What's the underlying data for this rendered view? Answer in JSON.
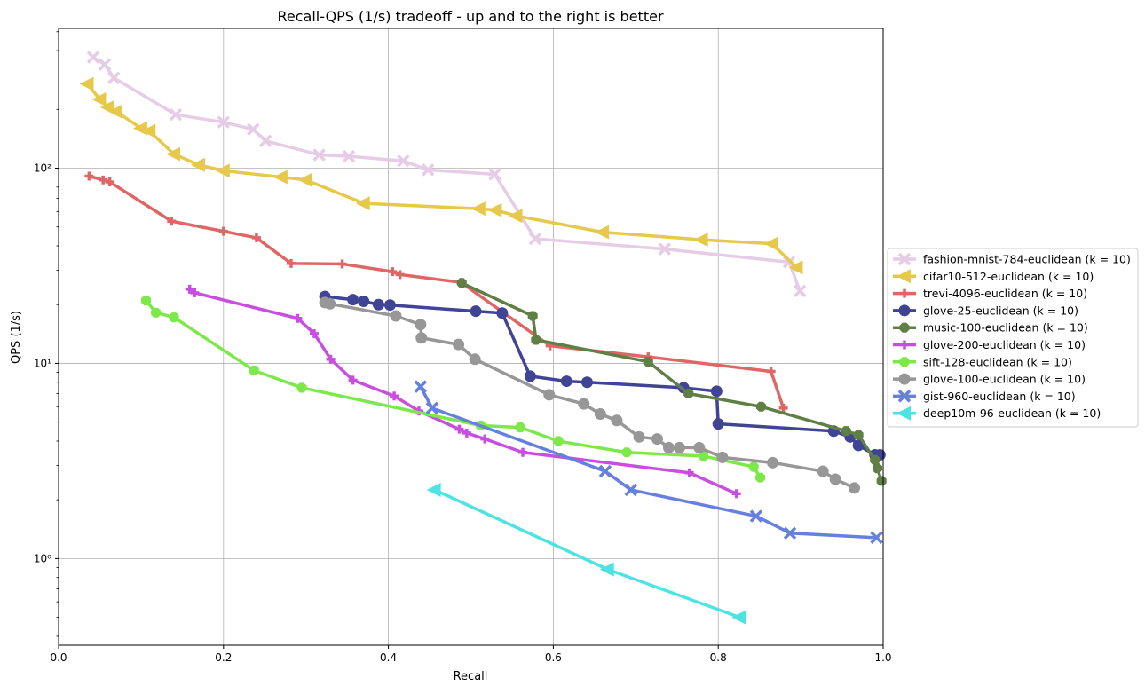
{
  "chart_data": {
    "type": "line",
    "title": "Recall-QPS (1/s) tradeoff - up and to the right is better",
    "xlabel": "Recall",
    "ylabel": "QPS (1/s)",
    "xlim": [
      0.0,
      1.0
    ],
    "ylim": [
      0.36,
      520
    ],
    "x_scale": "linear",
    "y_scale": "log",
    "x_ticks": [
      0.0,
      0.2,
      0.4,
      0.6,
      0.8,
      1.0
    ],
    "x_tick_labels": [
      "0.0",
      "0.2",
      "0.4",
      "0.6",
      "0.8",
      "1.0"
    ],
    "y_ticks": [
      1,
      10,
      100
    ],
    "y_tick_labels": [
      "10⁰",
      "10¹",
      "10²"
    ],
    "grid": true,
    "legend_position": "center-right, outside plot",
    "series": [
      {
        "name": "fashion-mnist-784-euclidean (k = 10)",
        "color": "#e6cce6",
        "marker": "x",
        "x": [
          0.042,
          0.056,
          0.067,
          0.142,
          0.2,
          0.236,
          0.251,
          0.316,
          0.352,
          0.418,
          0.448,
          0.529,
          0.578,
          0.735,
          0.886,
          0.899
        ],
        "y": [
          370,
          340,
          290,
          188,
          172,
          158,
          138,
          117,
          115,
          109,
          98,
          93,
          43.5,
          38.5,
          33,
          23.5
        ]
      },
      {
        "name": "cifar10-512-euclidean (k = 10)",
        "color": "#e6c84a",
        "marker": "triangle-left",
        "x": [
          0.035,
          0.05,
          0.06,
          0.07,
          0.1,
          0.11,
          0.14,
          0.17,
          0.2,
          0.27,
          0.3,
          0.37,
          0.51,
          0.53,
          0.555,
          0.66,
          0.78,
          0.865,
          0.895
        ],
        "y": [
          270,
          225,
          205,
          195,
          160,
          155,
          118,
          104,
          97,
          90,
          87,
          66,
          62,
          61,
          57,
          47,
          43,
          41,
          31
        ]
      },
      {
        "name": "trevi-4096-euclidean (k = 10)",
        "color": "#e06666",
        "marker": "plus",
        "x": [
          0.037,
          0.054,
          0.062,
          0.137,
          0.2,
          0.24,
          0.282,
          0.344,
          0.405,
          0.414,
          0.488,
          0.596,
          0.715,
          0.864,
          0.879
        ],
        "y": [
          91,
          87,
          85,
          53.5,
          47.5,
          44,
          32.5,
          32.3,
          29.5,
          28.5,
          26,
          12.3,
          10.8,
          9.1,
          5.9
        ]
      },
      {
        "name": "glove-25-euclidean (k = 10)",
        "color": "#3f4495",
        "marker": "circle",
        "x": [
          0.323,
          0.357,
          0.37,
          0.388,
          0.402,
          0.506,
          0.538,
          0.572,
          0.616,
          0.641,
          0.758,
          0.798,
          0.8,
          0.94,
          0.96,
          0.97,
          0.99,
          0.996
        ],
        "y": [
          22,
          21.2,
          20.8,
          20,
          19.9,
          18.5,
          18.1,
          8.6,
          8.1,
          8.0,
          7.5,
          7.2,
          4.9,
          4.5,
          4.2,
          3.8,
          3.4,
          3.4
        ]
      },
      {
        "name": "music-100-euclidean (k = 10)",
        "color": "#5f7f45",
        "marker": "octagon",
        "x": [
          0.489,
          0.575,
          0.579,
          0.715,
          0.764,
          0.852,
          0.955,
          0.97,
          0.99,
          0.993,
          0.998
        ],
        "y": [
          25.8,
          17.5,
          13.2,
          10.2,
          7.0,
          6.0,
          4.5,
          4.3,
          3.2,
          2.9,
          2.5
        ]
      },
      {
        "name": "glove-200-euclidean (k = 10)",
        "color": "#c84ee0",
        "marker": "plus",
        "x": [
          0.159,
          0.165,
          0.29,
          0.31,
          0.33,
          0.357,
          0.407,
          0.437,
          0.486,
          0.495,
          0.517,
          0.563,
          0.765,
          0.822
        ],
        "y": [
          24,
          23,
          17,
          14.2,
          10.5,
          8.2,
          6.8,
          5.7,
          4.6,
          4.4,
          4.1,
          3.5,
          2.75,
          2.15
        ]
      },
      {
        "name": "sift-128-euclidean (k = 10)",
        "color": "#7de84a",
        "marker": "octagon",
        "x": [
          0.106,
          0.118,
          0.14,
          0.237,
          0.295,
          0.512,
          0.56,
          0.606,
          0.689,
          0.782,
          0.843,
          0.851
        ],
        "y": [
          21,
          18.2,
          17.2,
          9.2,
          7.5,
          4.8,
          4.7,
          4.0,
          3.5,
          3.35,
          2.95,
          2.6
        ]
      },
      {
        "name": "glove-100-euclidean (k = 10)",
        "color": "#979797",
        "marker": "circle",
        "x": [
          0.323,
          0.329,
          0.409,
          0.439,
          0.44,
          0.485,
          0.505,
          0.595,
          0.637,
          0.657,
          0.677,
          0.704,
          0.726,
          0.74,
          0.753,
          0.777,
          0.805,
          0.866,
          0.927,
          0.942,
          0.965
        ],
        "y": [
          20.5,
          20.2,
          17.5,
          15.8,
          13.5,
          12.5,
          10.5,
          6.9,
          6.2,
          5.5,
          5.1,
          4.2,
          4.1,
          3.7,
          3.7,
          3.7,
          3.3,
          3.1,
          2.8,
          2.55,
          2.3
        ]
      },
      {
        "name": "gist-960-euclidean (k = 10)",
        "color": "#6680e0",
        "marker": "x",
        "x": [
          0.439,
          0.453,
          0.663,
          0.694,
          0.846,
          0.887,
          0.992
        ],
        "y": [
          7.6,
          5.9,
          2.8,
          2.25,
          1.65,
          1.35,
          1.28
        ]
      },
      {
        "name": "deep10m-96-euclidean (k = 10)",
        "color": "#4ee3e3",
        "marker": "triangle-left",
        "x": [
          0.456,
          0.666,
          0.826
        ],
        "y": [
          2.25,
          0.88,
          0.5
        ]
      }
    ]
  }
}
